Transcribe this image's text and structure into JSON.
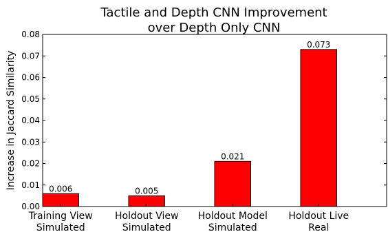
{
  "chart_data": {
    "type": "bar",
    "title": [
      "Tactile and Depth CNN Improvement",
      "over Depth Only CNN"
    ],
    "xlabel": "",
    "ylabel": "Increase in Jaccard Similarity",
    "categories": [
      [
        "Training View",
        "Simulated"
      ],
      [
        "Holdout View",
        "Simulated"
      ],
      [
        "Holdout Model",
        "Simulated"
      ],
      [
        "Holdout Live",
        "Real"
      ]
    ],
    "values": [
      0.006,
      0.005,
      0.021,
      0.073
    ],
    "value_labels": [
      "0.006",
      "0.005",
      "0.021",
      "0.073"
    ],
    "ylim": [
      0,
      0.08
    ],
    "yticks": [
      0.0,
      0.01,
      0.02,
      0.03,
      0.04,
      0.05,
      0.06,
      0.07,
      0.08
    ],
    "ytick_labels": [
      "0.00",
      "0.01",
      "0.02",
      "0.03",
      "0.04",
      "0.05",
      "0.06",
      "0.07",
      "0.08"
    ],
    "bar_color": "#ff0000",
    "bar_edge_color": "#000000",
    "grid": false,
    "legend": "none"
  }
}
